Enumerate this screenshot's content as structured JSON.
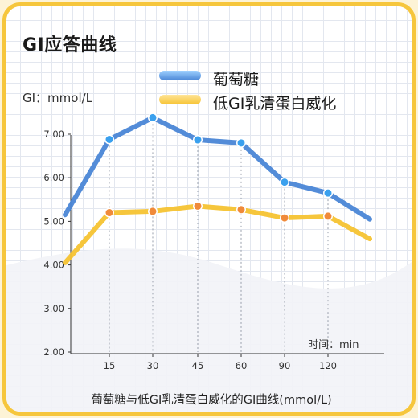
{
  "chart_data": {
    "type": "line",
    "title": "GI应答曲线",
    "ylabel": "GI：mmol/L",
    "xlabel": "时间：min",
    "caption": "葡萄糖与低GI乳清蛋白威化的GI曲线(mmol/L)",
    "ylim": [
      2.0,
      7.8
    ],
    "yticks": [
      "2.00",
      "3.00",
      "4.00",
      "5.00",
      "6.00",
      "7.00"
    ],
    "categories": [
      "0",
      "15",
      "30",
      "45",
      "60",
      "90",
      "120",
      "135"
    ],
    "xtick_labels": [
      "15",
      "30",
      "45",
      "60",
      "90",
      "120"
    ],
    "xtick_indices": [
      1,
      2,
      3,
      4,
      5,
      6
    ],
    "legend_position": "top",
    "grid": true,
    "series": [
      {
        "name": "葡萄糖",
        "color": "#4a86d6",
        "values": [
          5.15,
          6.88,
          7.38,
          6.87,
          6.8,
          5.9,
          5.65,
          5.05
        ],
        "marker_indices": [
          1,
          2,
          3,
          4,
          5,
          6
        ]
      },
      {
        "name": "低GI乳清蛋白威化",
        "color": "#f6c332",
        "values": [
          4.05,
          5.2,
          5.23,
          5.35,
          5.27,
          5.08,
          5.12,
          4.6
        ],
        "marker_indices": [
          1,
          2,
          3,
          4,
          5,
          6
        ]
      }
    ]
  }
}
